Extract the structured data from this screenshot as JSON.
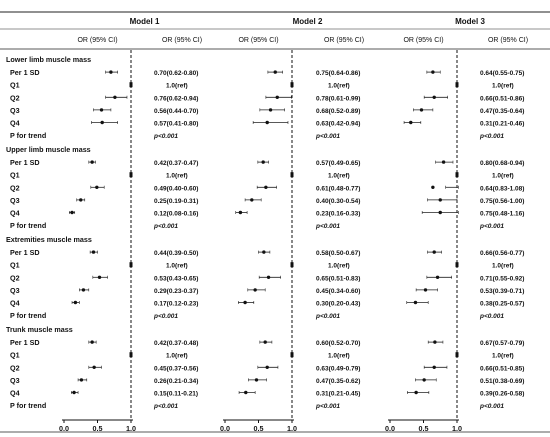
{
  "chart_data": {
    "type": "forest",
    "models": [
      "Model 1",
      "Model 2",
      "Model 3"
    ],
    "column_headers": {
      "plot": "OR (95% CI)",
      "text": "OR (95% CI)"
    },
    "x_ticks": [
      "0.0",
      "0.5",
      "1.0"
    ],
    "xlim": [
      0,
      1
    ],
    "reference_line": 1.0,
    "groups": [
      {
        "name": "Lower limb muscle mass",
        "rows": [
          {
            "label": "Per 1 SD",
            "values": [
              {
                "or": 0.7,
                "lo": 0.62,
                "hi": 0.8,
                "text": "0.70(0.62-0.80)"
              },
              {
                "or": 0.75,
                "lo": 0.64,
                "hi": 0.86,
                "text": "0.75(0.64-0.86)"
              },
              {
                "or": 0.64,
                "lo": 0.55,
                "hi": 0.75,
                "text": "0.64(0.55-0.75)"
              }
            ]
          },
          {
            "label": "Q1",
            "values": [
              {
                "or": 1.0,
                "lo": 1.0,
                "hi": 1.0,
                "text": "1.0(ref)"
              },
              {
                "or": 1.0,
                "lo": 1.0,
                "hi": 1.0,
                "text": "1.0(ref)"
              },
              {
                "or": 1.0,
                "lo": 1.0,
                "hi": 1.0,
                "text": "1.0(ref)"
              }
            ]
          },
          {
            "label": "Q2",
            "values": [
              {
                "or": 0.76,
                "lo": 0.62,
                "hi": 0.94,
                "text": "0.76(0.62-0.94)"
              },
              {
                "or": 0.78,
                "lo": 0.61,
                "hi": 0.99,
                "text": "0.78(0.61-0.99)"
              },
              {
                "or": 0.66,
                "lo": 0.51,
                "hi": 0.86,
                "text": "0.66(0.51-0.86)"
              }
            ]
          },
          {
            "label": "Q3",
            "values": [
              {
                "or": 0.56,
                "lo": 0.44,
                "hi": 0.7,
                "text": "0.56(0.44-0.70)"
              },
              {
                "or": 0.68,
                "lo": 0.52,
                "hi": 0.89,
                "text": "0.68(0.52-0.89)"
              },
              {
                "or": 0.47,
                "lo": 0.35,
                "hi": 0.64,
                "text": "0.47(0.35-0.64)"
              }
            ]
          },
          {
            "label": "Q4",
            "values": [
              {
                "or": 0.57,
                "lo": 0.41,
                "hi": 0.8,
                "text": "0.57(0.41-0.80)"
              },
              {
                "or": 0.63,
                "lo": 0.42,
                "hi": 0.94,
                "text": "0.63(0.42-0.94)"
              },
              {
                "or": 0.31,
                "lo": 0.21,
                "hi": 0.46,
                "text": "0.31(0.21-0.46)"
              }
            ]
          },
          {
            "label": "P for trend",
            "trend": [
              "p<0.001",
              "p<0.001",
              "p<0.001"
            ]
          }
        ]
      },
      {
        "name": "Upper limb muscle mass",
        "rows": [
          {
            "label": "Per 1 SD",
            "values": [
              {
                "or": 0.42,
                "lo": 0.37,
                "hi": 0.47,
                "text": "0.42(0.37-0.47)"
              },
              {
                "or": 0.57,
                "lo": 0.49,
                "hi": 0.65,
                "text": "0.57(0.49-0.65)"
              },
              {
                "or": 0.8,
                "lo": 0.68,
                "hi": 0.94,
                "text": "0.80(0.68-0.94)"
              }
            ]
          },
          {
            "label": "Q1",
            "values": [
              {
                "or": 1.0,
                "lo": 1.0,
                "hi": 1.0,
                "text": "1.0(ref)"
              },
              {
                "or": 1.0,
                "lo": 1.0,
                "hi": 1.0,
                "text": "1.0(ref)"
              },
              {
                "or": 1.0,
                "lo": 1.0,
                "hi": 1.0,
                "text": "1.0(ref)"
              }
            ]
          },
          {
            "label": "Q2",
            "values": [
              {
                "or": 0.49,
                "lo": 0.4,
                "hi": 0.6,
                "text": "0.49(0.40-0.60)"
              },
              {
                "or": 0.61,
                "lo": 0.48,
                "hi": 0.77,
                "text": "0.61(0.48-0.77)"
              },
              {
                "or": 0.64,
                "lo": 0.83,
                "hi": 1.08,
                "text": "0.64(0.83-1.08)"
              }
            ]
          },
          {
            "label": "Q3",
            "values": [
              {
                "or": 0.25,
                "lo": 0.19,
                "hi": 0.31,
                "text": "0.25(0.19-0.31)"
              },
              {
                "or": 0.4,
                "lo": 0.3,
                "hi": 0.54,
                "text": "0.40(0.30-0.54)"
              },
              {
                "or": 0.75,
                "lo": 0.56,
                "hi": 1.0,
                "text": "0.75(0.56-1.00)"
              }
            ]
          },
          {
            "label": "Q4",
            "values": [
              {
                "or": 0.12,
                "lo": 0.08,
                "hi": 0.16,
                "text": "0.12(0.08-0.16)"
              },
              {
                "or": 0.23,
                "lo": 0.16,
                "hi": 0.33,
                "text": "0.23(0.16-0.33)"
              },
              {
                "or": 0.75,
                "lo": 0.48,
                "hi": 1.16,
                "text": "0.75(0.48-1.16)"
              }
            ]
          },
          {
            "label": "P for trend",
            "trend": [
              "p<0.001",
              "p<0.001",
              "p<0.001"
            ]
          }
        ]
      },
      {
        "name": "Extremities muscle mass",
        "rows": [
          {
            "label": "Per 1 SD",
            "values": [
              {
                "or": 0.44,
                "lo": 0.39,
                "hi": 0.5,
                "text": "0.44(0.39-0.50)"
              },
              {
                "or": 0.58,
                "lo": 0.5,
                "hi": 0.67,
                "text": "0.58(0.50-0.67)"
              },
              {
                "or": 0.66,
                "lo": 0.56,
                "hi": 0.77,
                "text": "0.66(0.56-0.77)"
              }
            ]
          },
          {
            "label": "Q1",
            "values": [
              {
                "or": 1.0,
                "lo": 1.0,
                "hi": 1.0,
                "text": "1.0(ref)"
              },
              {
                "or": 1.0,
                "lo": 1.0,
                "hi": 1.0,
                "text": "1.0(ref)"
              },
              {
                "or": 1.0,
                "lo": 1.0,
                "hi": 1.0,
                "text": "1.0(ref)"
              }
            ]
          },
          {
            "label": "Q2",
            "values": [
              {
                "or": 0.53,
                "lo": 0.43,
                "hi": 0.65,
                "text": "0.53(0.43-0.65)"
              },
              {
                "or": 0.65,
                "lo": 0.51,
                "hi": 0.83,
                "text": "0.65(0.51-0.83)"
              },
              {
                "or": 0.71,
                "lo": 0.55,
                "hi": 0.92,
                "text": "0.71(0.55-0.92)"
              }
            ]
          },
          {
            "label": "Q3",
            "values": [
              {
                "or": 0.29,
                "lo": 0.23,
                "hi": 0.37,
                "text": "0.29(0.23-0.37)"
              },
              {
                "or": 0.45,
                "lo": 0.34,
                "hi": 0.6,
                "text": "0.45(0.34-0.60)"
              },
              {
                "or": 0.53,
                "lo": 0.39,
                "hi": 0.71,
                "text": "0.53(0.39-0.71)"
              }
            ]
          },
          {
            "label": "Q4",
            "values": [
              {
                "or": 0.17,
                "lo": 0.12,
                "hi": 0.23,
                "text": "0.17(0.12-0.23)"
              },
              {
                "or": 0.3,
                "lo": 0.2,
                "hi": 0.43,
                "text": "0.30(0.20-0.43)"
              },
              {
                "or": 0.38,
                "lo": 0.25,
                "hi": 0.57,
                "text": "0.38(0.25-0.57)"
              }
            ]
          },
          {
            "label": "P for trend",
            "trend": [
              "p<0.001",
              "p<0.001",
              "p<0.001"
            ]
          }
        ]
      },
      {
        "name": "Trunk muscle mass",
        "rows": [
          {
            "label": "Per 1 SD",
            "values": [
              {
                "or": 0.42,
                "lo": 0.37,
                "hi": 0.48,
                "text": "0.42(0.37-0.48)"
              },
              {
                "or": 0.6,
                "lo": 0.52,
                "hi": 0.7,
                "text": "0.60(0.52-0.70)"
              },
              {
                "or": 0.67,
                "lo": 0.57,
                "hi": 0.79,
                "text": "0.67(0.57-0.79)"
              }
            ]
          },
          {
            "label": "Q1",
            "values": [
              {
                "or": 1.0,
                "lo": 1.0,
                "hi": 1.0,
                "text": "1.0(ref)"
              },
              {
                "or": 1.0,
                "lo": 1.0,
                "hi": 1.0,
                "text": "1.0(ref)"
              },
              {
                "or": 1.0,
                "lo": 1.0,
                "hi": 1.0,
                "text": "1.0(ref)"
              }
            ]
          },
          {
            "label": "Q2",
            "values": [
              {
                "or": 0.45,
                "lo": 0.37,
                "hi": 0.56,
                "text": "0.45(0.37-0.56)"
              },
              {
                "or": 0.63,
                "lo": 0.49,
                "hi": 0.79,
                "text": "0.63(0.49-0.79)"
              },
              {
                "or": 0.66,
                "lo": 0.51,
                "hi": 0.85,
                "text": "0.66(0.51-0.85)"
              }
            ]
          },
          {
            "label": "Q3",
            "values": [
              {
                "or": 0.26,
                "lo": 0.21,
                "hi": 0.34,
                "text": "0.26(0.21-0.34)"
              },
              {
                "or": 0.47,
                "lo": 0.35,
                "hi": 0.62,
                "text": "0.47(0.35-0.62)"
              },
              {
                "or": 0.51,
                "lo": 0.38,
                "hi": 0.69,
                "text": "0.51(0.38-0.69)"
              }
            ]
          },
          {
            "label": "Q4",
            "values": [
              {
                "or": 0.15,
                "lo": 0.11,
                "hi": 0.21,
                "text": "0.15(0.11-0.21)"
              },
              {
                "or": 0.31,
                "lo": 0.21,
                "hi": 0.45,
                "text": "0.31(0.21-0.45)"
              },
              {
                "or": 0.39,
                "lo": 0.26,
                "hi": 0.58,
                "text": "0.39(0.26-0.58)"
              }
            ]
          },
          {
            "label": "P for trend",
            "trend": [
              "p<0.001",
              "p<0.001",
              "p<0.001"
            ]
          }
        ]
      }
    ]
  }
}
